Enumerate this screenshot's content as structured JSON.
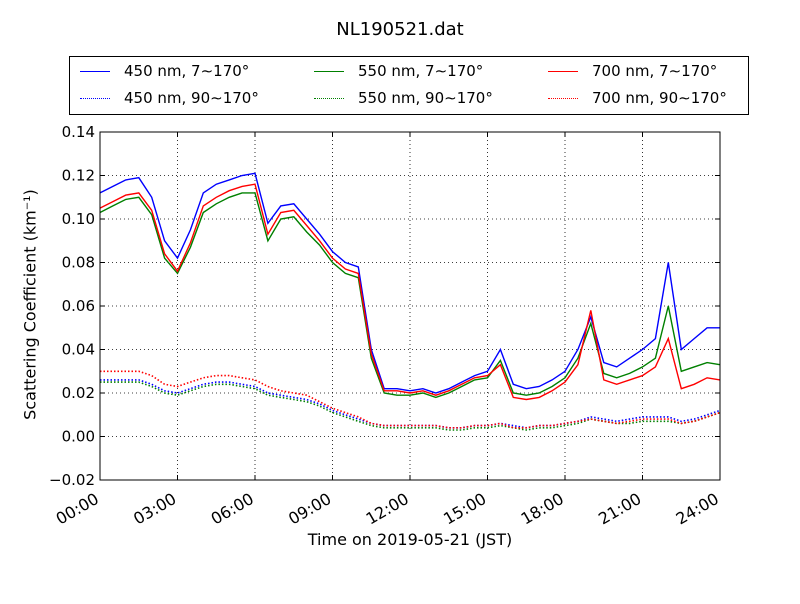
{
  "chart_data": {
    "type": "line",
    "title": "NL190521.dat",
    "xlabel": "Time on 2019-05-21 (JST)",
    "ylabel": "Scattering Coefficient (km⁻¹)",
    "xlim": [
      "00:00",
      "24:00"
    ],
    "ylim": [
      -0.02,
      0.14
    ],
    "x_ticks": [
      "00:00",
      "03:00",
      "06:00",
      "09:00",
      "12:00",
      "15:00",
      "18:00",
      "21:00",
      "24:00"
    ],
    "y_ticks": [
      "−0.02",
      "0.00",
      "0.02",
      "0.04",
      "0.06",
      "0.08",
      "0.10",
      "0.12",
      "0.14"
    ],
    "grid": true,
    "legend_position": "top, above plot, 3 columns",
    "x": [
      "00:00",
      "00:30",
      "01:00",
      "01:30",
      "02:00",
      "02:30",
      "03:00",
      "03:30",
      "04:00",
      "04:30",
      "05:00",
      "05:30",
      "06:00",
      "06:30",
      "07:00",
      "07:30",
      "08:00",
      "08:30",
      "09:00",
      "09:30",
      "10:00",
      "10:30",
      "11:00",
      "11:30",
      "12:00",
      "12:30",
      "13:00",
      "13:30",
      "14:00",
      "14:30",
      "15:00",
      "15:30",
      "16:00",
      "16:30",
      "17:00",
      "17:30",
      "18:00",
      "18:30",
      "19:00",
      "19:30",
      "20:00",
      "20:30",
      "21:00",
      "21:30",
      "22:00",
      "22:30",
      "23:00",
      "23:30",
      "24:00"
    ],
    "series": [
      {
        "name": "450 nm, 7∼170°",
        "color": "#0000ff",
        "style": "solid",
        "values": [
          0.112,
          0.115,
          0.118,
          0.119,
          0.11,
          0.09,
          0.082,
          0.095,
          0.112,
          0.116,
          0.118,
          0.12,
          0.121,
          0.098,
          0.106,
          0.107,
          0.1,
          0.093,
          0.085,
          0.08,
          0.078,
          0.04,
          0.022,
          0.022,
          0.021,
          0.022,
          0.02,
          0.022,
          0.025,
          0.028,
          0.03,
          0.04,
          0.024,
          0.022,
          0.023,
          0.026,
          0.03,
          0.04,
          0.055,
          0.034,
          0.032,
          0.036,
          0.04,
          0.045,
          0.08,
          0.04,
          0.045,
          0.05,
          0.05
        ]
      },
      {
        "name": "450 nm, 90∼170°",
        "color": "#0000ff",
        "style": "dotted",
        "values": [
          0.026,
          0.026,
          0.026,
          0.026,
          0.024,
          0.021,
          0.02,
          0.022,
          0.024,
          0.025,
          0.025,
          0.024,
          0.023,
          0.02,
          0.019,
          0.018,
          0.017,
          0.015,
          0.012,
          0.01,
          0.008,
          0.006,
          0.005,
          0.005,
          0.005,
          0.005,
          0.005,
          0.004,
          0.004,
          0.005,
          0.005,
          0.006,
          0.005,
          0.004,
          0.005,
          0.005,
          0.006,
          0.007,
          0.009,
          0.008,
          0.007,
          0.008,
          0.009,
          0.009,
          0.009,
          0.007,
          0.008,
          0.01,
          0.012
        ]
      },
      {
        "name": "550 nm, 7∼170°",
        "color": "#008000",
        "style": "solid",
        "values": [
          0.103,
          0.106,
          0.109,
          0.11,
          0.102,
          0.082,
          0.075,
          0.087,
          0.103,
          0.107,
          0.11,
          0.112,
          0.112,
          0.09,
          0.1,
          0.101,
          0.094,
          0.088,
          0.08,
          0.075,
          0.073,
          0.036,
          0.02,
          0.019,
          0.019,
          0.02,
          0.018,
          0.02,
          0.023,
          0.026,
          0.027,
          0.035,
          0.02,
          0.019,
          0.02,
          0.023,
          0.027,
          0.036,
          0.052,
          0.029,
          0.027,
          0.029,
          0.032,
          0.036,
          0.06,
          0.03,
          0.032,
          0.034,
          0.033
        ]
      },
      {
        "name": "550 nm, 90∼170°",
        "color": "#008000",
        "style": "dotted",
        "values": [
          0.025,
          0.025,
          0.025,
          0.025,
          0.023,
          0.02,
          0.019,
          0.021,
          0.023,
          0.024,
          0.024,
          0.023,
          0.022,
          0.019,
          0.018,
          0.017,
          0.016,
          0.014,
          0.011,
          0.009,
          0.007,
          0.005,
          0.004,
          0.004,
          0.004,
          0.004,
          0.004,
          0.003,
          0.003,
          0.004,
          0.004,
          0.005,
          0.004,
          0.003,
          0.004,
          0.004,
          0.005,
          0.006,
          0.008,
          0.007,
          0.006,
          0.006,
          0.007,
          0.007,
          0.007,
          0.006,
          0.007,
          0.009,
          0.011
        ]
      },
      {
        "name": "700 nm, 7∼170°",
        "color": "#ff0000",
        "style": "solid",
        "values": [
          0.105,
          0.108,
          0.111,
          0.112,
          0.104,
          0.084,
          0.076,
          0.089,
          0.106,
          0.11,
          0.113,
          0.115,
          0.116,
          0.093,
          0.103,
          0.104,
          0.097,
          0.09,
          0.082,
          0.077,
          0.075,
          0.038,
          0.021,
          0.021,
          0.02,
          0.021,
          0.019,
          0.021,
          0.024,
          0.027,
          0.028,
          0.033,
          0.018,
          0.017,
          0.018,
          0.021,
          0.025,
          0.033,
          0.058,
          0.026,
          0.024,
          0.026,
          0.028,
          0.032,
          0.045,
          0.022,
          0.024,
          0.027,
          0.026
        ]
      },
      {
        "name": "700 nm, 90∼170°",
        "color": "#ff0000",
        "style": "dotted",
        "values": [
          0.03,
          0.03,
          0.03,
          0.03,
          0.028,
          0.024,
          0.023,
          0.025,
          0.027,
          0.028,
          0.028,
          0.027,
          0.026,
          0.023,
          0.021,
          0.02,
          0.019,
          0.016,
          0.013,
          0.011,
          0.009,
          0.006,
          0.005,
          0.005,
          0.005,
          0.005,
          0.005,
          0.004,
          0.004,
          0.005,
          0.005,
          0.006,
          0.004,
          0.004,
          0.005,
          0.005,
          0.006,
          0.007,
          0.008,
          0.007,
          0.006,
          0.007,
          0.008,
          0.008,
          0.008,
          0.006,
          0.007,
          0.009,
          0.011
        ]
      }
    ]
  }
}
